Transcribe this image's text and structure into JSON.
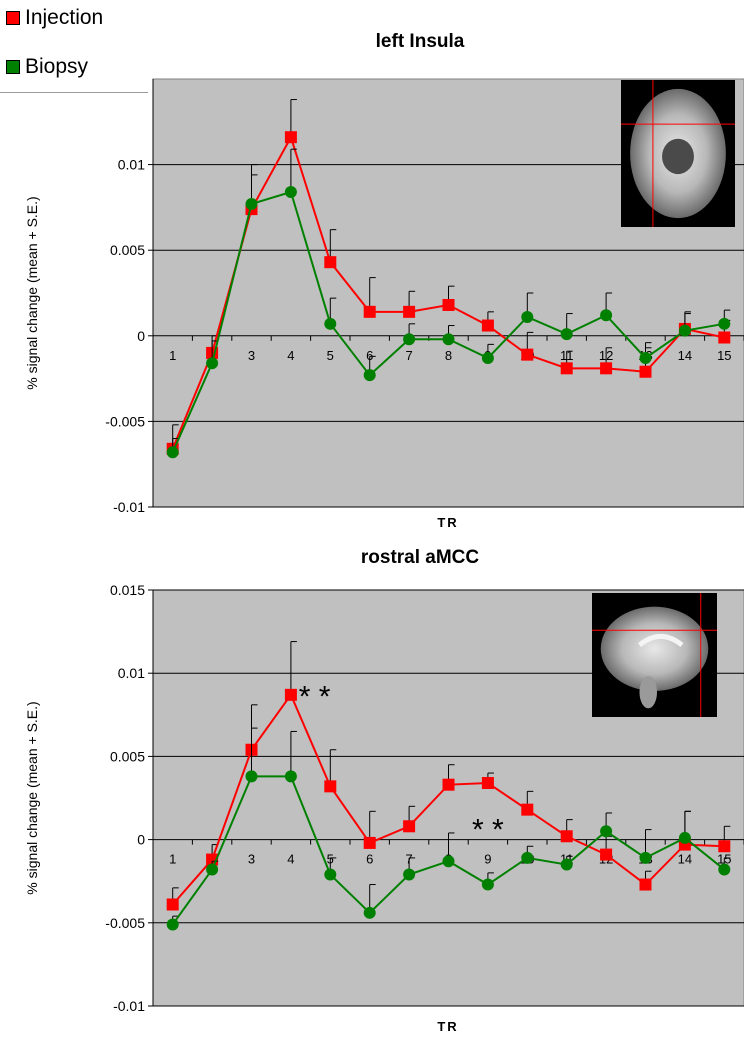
{
  "legend": [
    {
      "label": "Injection",
      "color": "#ff0000"
    },
    {
      "label": "Biopsy",
      "color": "#008000"
    }
  ],
  "colors": {
    "plot_bg": "#c0c0c0",
    "grid": "#000000",
    "insula_red": "#ff0000",
    "insula_green": "#008000"
  },
  "chart_data": [
    {
      "type": "line",
      "title": "left Insula",
      "xlabel": "TR",
      "ylabel": "% signal change (mean + S.E.)",
      "categories": [
        "1",
        "2",
        "3",
        "4",
        "5",
        "6",
        "7",
        "8",
        "9",
        "10",
        "11",
        "12",
        "13",
        "14",
        "15"
      ],
      "yticks": [
        "-0.01",
        "-0.005",
        "0",
        "0.005",
        "0.01"
      ],
      "ylim": [
        -0.01,
        0.015
      ],
      "grid": true,
      "annotations": [],
      "inset": "axial brain slice with red crosshair",
      "series": [
        {
          "name": "Injection",
          "color": "#ff0000",
          "marker": "square",
          "values": [
            -0.0066,
            -0.001,
            0.0074,
            0.0116,
            0.0043,
            0.0014,
            0.0014,
            0.0018,
            0.0006,
            -0.0011,
            -0.0019,
            -0.0019,
            -0.0021,
            0.0004,
            -0.0001
          ],
          "errors": [
            0.0014,
            0.001,
            0.002,
            0.0022,
            0.0019,
            0.002,
            0.0012,
            0.0011,
            0.0008,
            0.0013,
            0.001,
            0.0012,
            0.0014,
            0.001,
            0.001
          ]
        },
        {
          "name": "Biopsy",
          "color": "#008000",
          "marker": "circle",
          "values": [
            -0.0068,
            -0.0016,
            0.0077,
            0.0084,
            0.0007,
            -0.0023,
            -0.0002,
            -0.0002,
            -0.0013,
            0.0011,
            0.0001,
            0.0012,
            -0.0013,
            0.0003,
            0.0007
          ],
          "errors": [
            0.0008,
            0.0013,
            0.0023,
            0.0025,
            0.0015,
            0.0011,
            0.0009,
            0.0008,
            0.0008,
            0.0014,
            0.0012,
            0.0013,
            0.0009,
            0.001,
            0.0008
          ]
        }
      ]
    },
    {
      "type": "line",
      "title": "rostral aMCC",
      "xlabel": "TR",
      "ylabel": "% signal change (mean + S.E.)",
      "categories": [
        "1",
        "2",
        "3",
        "4",
        "5",
        "6",
        "7",
        "8",
        "9",
        "10",
        "11",
        "12",
        "13",
        "14",
        "15"
      ],
      "yticks": [
        "-0.01",
        "-0.005",
        "0",
        "0.005",
        "0.01",
        "0.015"
      ],
      "ylim": [
        -0.01,
        0.015
      ],
      "grid": true,
      "annotations": [
        {
          "text": "* *",
          "x": 4.6,
          "y": 0.0092
        },
        {
          "text": "* *",
          "x": 9,
          "y": 0.0012
        }
      ],
      "inset": "sagittal brain slice with red crosshair",
      "series": [
        {
          "name": "Injection",
          "color": "#ff0000",
          "marker": "square",
          "values": [
            -0.0039,
            -0.0012,
            0.0054,
            0.0087,
            0.0032,
            -0.0002,
            0.0008,
            0.0033,
            0.0034,
            0.0018,
            0.0002,
            -0.0009,
            -0.0027,
            -0.0003,
            -0.0004
          ],
          "errors": [
            0.001,
            0.0009,
            0.0027,
            0.0032,
            0.0022,
            0.0019,
            0.0012,
            0.0012,
            0.0006,
            0.0011,
            0.001,
            0.0011,
            0.0008,
            0.002,
            0.0012
          ]
        },
        {
          "name": "Biopsy",
          "color": "#008000",
          "marker": "circle",
          "values": [
            -0.0051,
            -0.0018,
            0.0038,
            0.0038,
            -0.0021,
            -0.0044,
            -0.0021,
            -0.0013,
            -0.0027,
            -0.0011,
            -0.0015,
            0.0005,
            -0.0011,
            0.0001,
            -0.0018
          ],
          "errors": [
            0.0005,
            0.0005,
            0.0029,
            0.0027,
            0.001,
            0.0017,
            0.001,
            0.0017,
            0.0007,
            0.0007,
            0.0005,
            0.0011,
            0.0017,
            0.0016,
            0.0007
          ]
        }
      ]
    }
  ]
}
